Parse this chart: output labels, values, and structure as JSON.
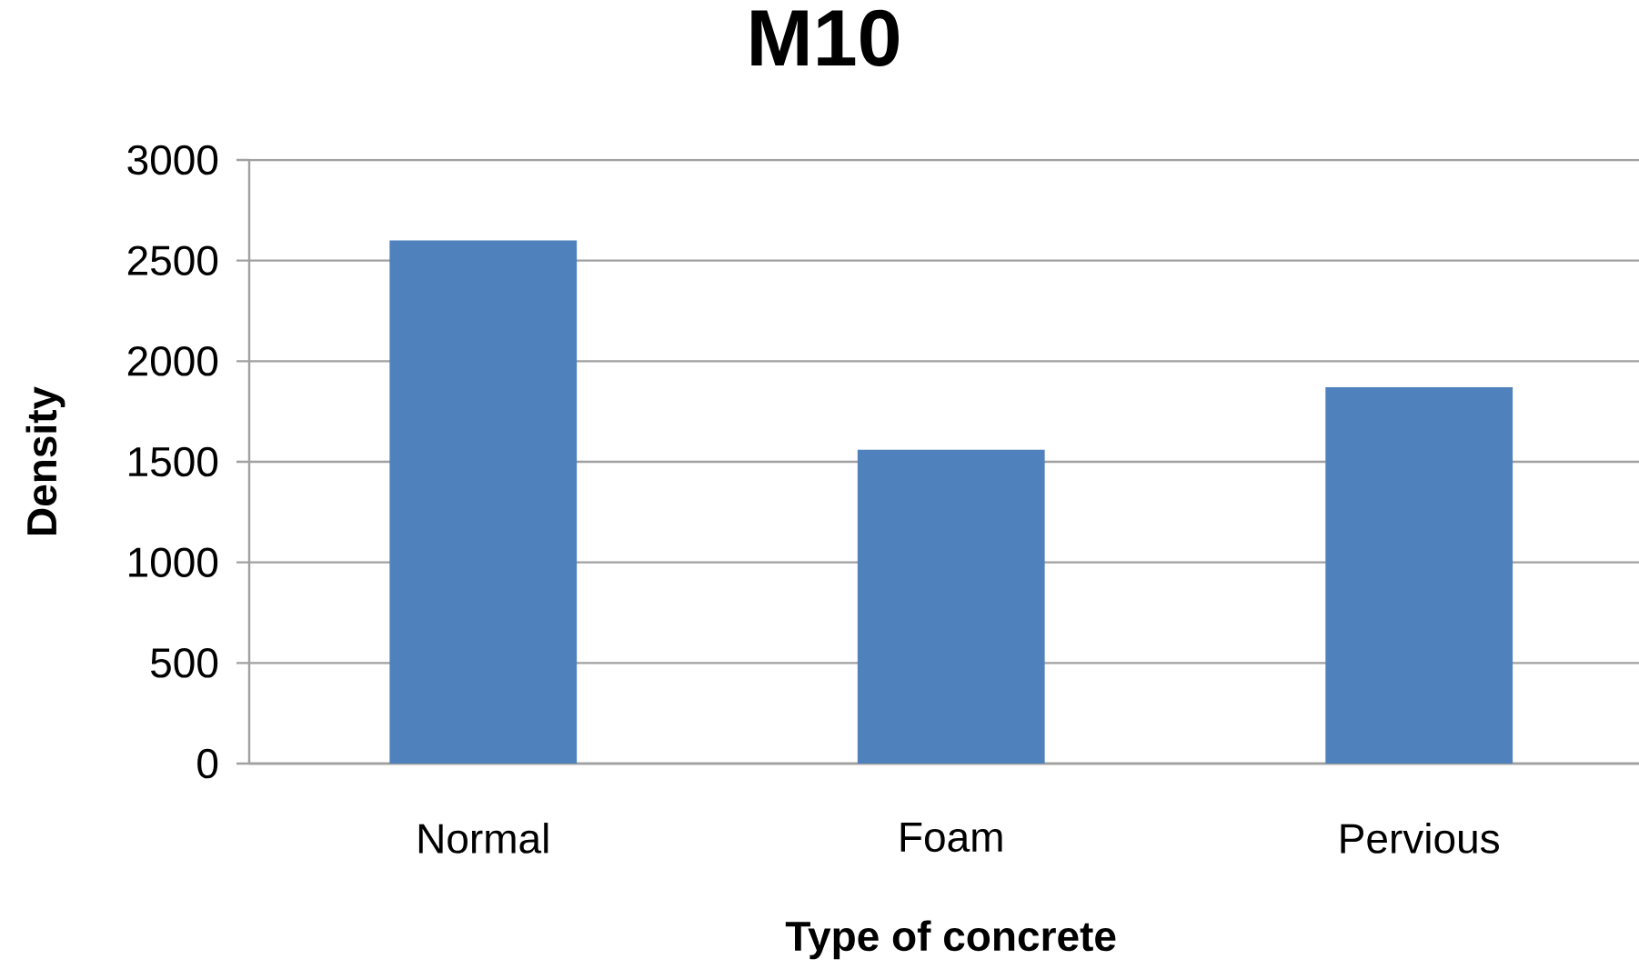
{
  "chart_data": {
    "type": "bar",
    "title": "M10",
    "xlabel": "Type of concrete",
    "ylabel": "Density",
    "categories": [
      "Normal",
      "Foam",
      "Pervious"
    ],
    "values": [
      2600,
      1560,
      1870
    ],
    "color": "#4f81bd",
    "ylim": [
      0,
      3000
    ],
    "yticks": [
      0,
      500,
      1000,
      1500,
      2000,
      2500,
      3000
    ],
    "grid": "y"
  }
}
